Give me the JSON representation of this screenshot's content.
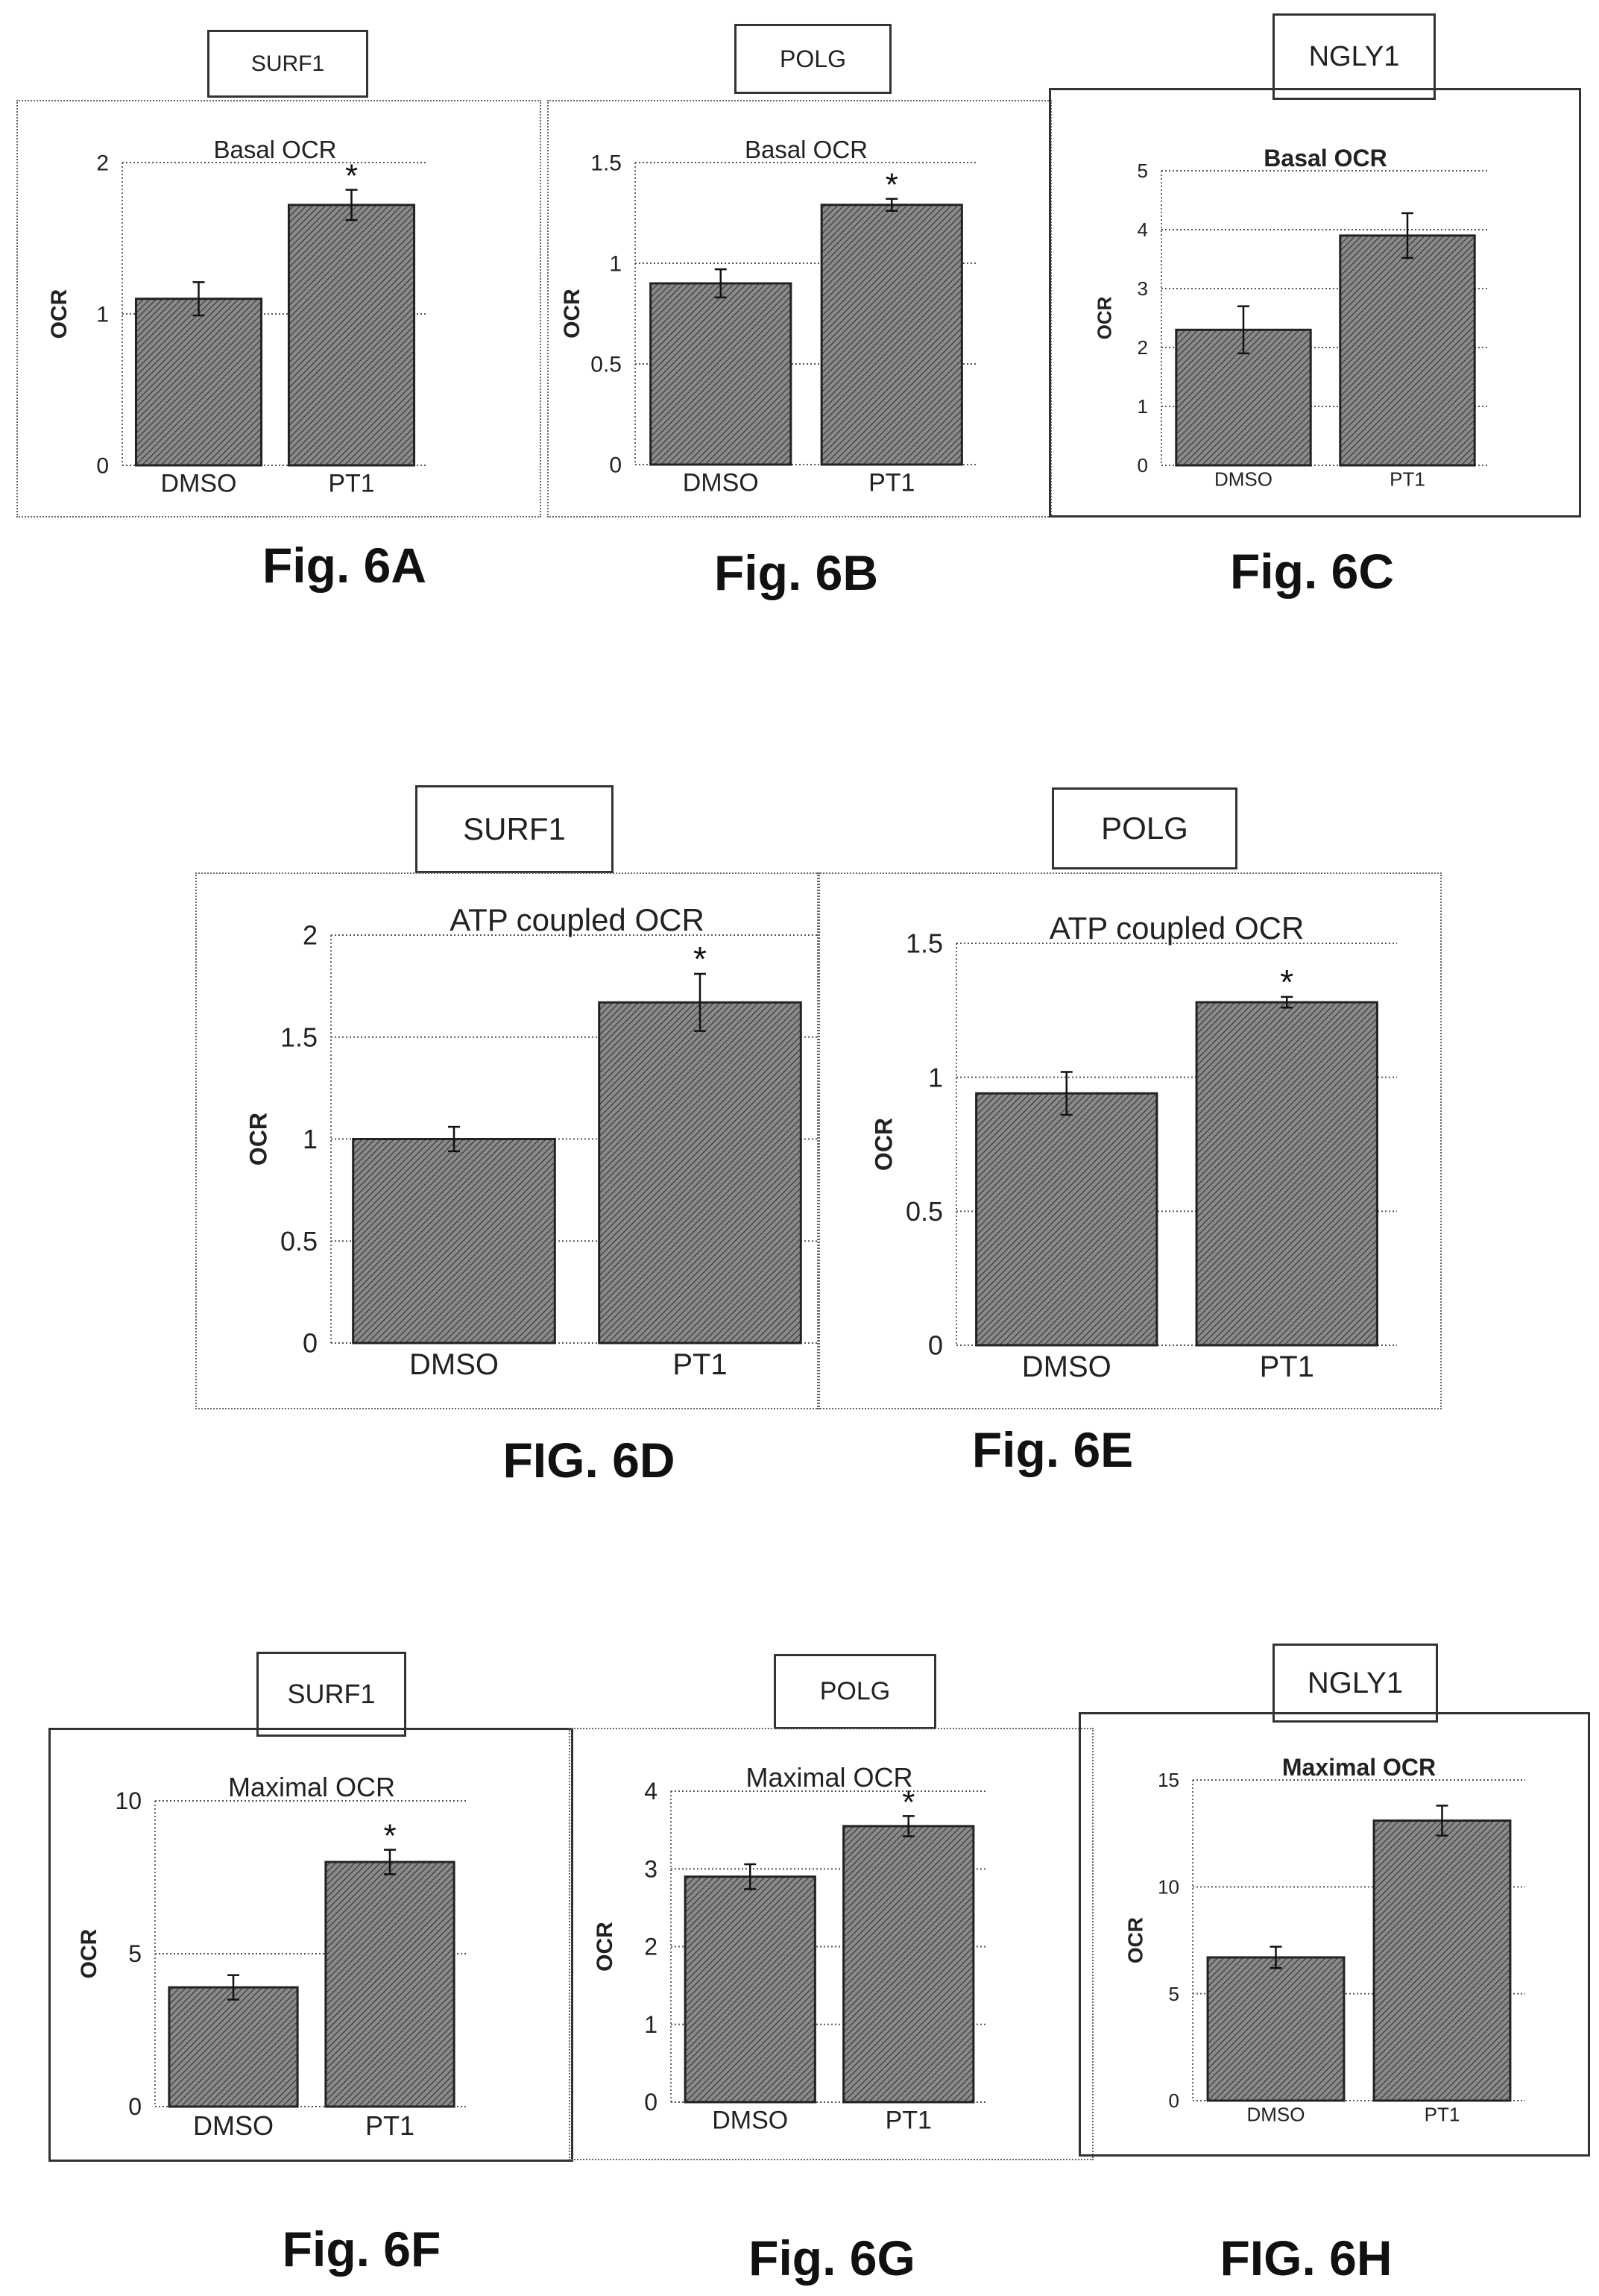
{
  "chart_data": [
    {
      "id": "6A",
      "type": "bar",
      "gene": "SURF1",
      "title": "Basal OCR",
      "ylabel": "OCR",
      "categories": [
        "DMSO",
        "PT1"
      ],
      "values": [
        1.1,
        1.72
      ],
      "errors": [
        0.11,
        0.1
      ],
      "significance": [
        "",
        "*"
      ],
      "ylim": [
        0,
        2
      ],
      "yticks": [
        0,
        1,
        2
      ],
      "ytick_labels": [
        "0",
        "1",
        "2"
      ],
      "caption": "Fig. 6A"
    },
    {
      "id": "6B",
      "type": "bar",
      "gene": "POLG",
      "title": "Basal OCR",
      "ylabel": "OCR",
      "categories": [
        "DMSO",
        "PT1"
      ],
      "values": [
        0.9,
        1.29
      ],
      "errors": [
        0.07,
        0.03
      ],
      "significance": [
        "",
        "*"
      ],
      "ylim": [
        0,
        1.5
      ],
      "yticks": [
        0,
        0.5,
        1,
        1.5
      ],
      "ytick_labels": [
        "0",
        "0.5",
        "1",
        "1.5"
      ],
      "caption": "Fig. 6B"
    },
    {
      "id": "6C",
      "type": "bar",
      "gene": "NGLY1",
      "title": "Basal OCR",
      "ylabel": "OCR",
      "categories": [
        "DMSO",
        "PT1"
      ],
      "values": [
        2.3,
        3.9
      ],
      "errors": [
        0.4,
        0.38
      ],
      "significance": [
        "",
        ""
      ],
      "ylim": [
        0,
        5
      ],
      "yticks": [
        0,
        1,
        2,
        3,
        4,
        5
      ],
      "ytick_labels": [
        "0",
        "1",
        "2",
        "3",
        "4",
        "5"
      ],
      "caption": "Fig. 6C"
    },
    {
      "id": "6D",
      "type": "bar",
      "gene": "SURF1",
      "title": "ATP coupled OCR",
      "ylabel": "OCR",
      "categories": [
        "DMSO",
        "PT1"
      ],
      "values": [
        1.0,
        1.67
      ],
      "errors": [
        0.06,
        0.14
      ],
      "significance": [
        "",
        "*"
      ],
      "ylim": [
        0,
        2
      ],
      "yticks": [
        0,
        0.5,
        1,
        1.5,
        2
      ],
      "ytick_labels": [
        "0",
        "0.5",
        "1",
        "1.5",
        "2"
      ],
      "caption": "FIG. 6D"
    },
    {
      "id": "6E",
      "type": "bar",
      "gene": "POLG",
      "title": "ATP coupled OCR",
      "ylabel": "OCR",
      "categories": [
        "DMSO",
        "PT1"
      ],
      "values": [
        0.94,
        1.28
      ],
      "errors": [
        0.08,
        0.02
      ],
      "significance": [
        "",
        "*"
      ],
      "ylim": [
        0,
        1.5
      ],
      "yticks": [
        0,
        0.5,
        1,
        1.5
      ],
      "ytick_labels": [
        "0",
        "0.5",
        "1",
        "1.5"
      ],
      "caption": "Fig. 6E"
    },
    {
      "id": "6F",
      "type": "bar",
      "gene": "SURF1",
      "title": "Maximal OCR",
      "ylabel": "OCR",
      "categories": [
        "DMSO",
        "PT1"
      ],
      "values": [
        3.9,
        8.0
      ],
      "errors": [
        0.4,
        0.4
      ],
      "significance": [
        "",
        "*"
      ],
      "ylim": [
        0,
        10
      ],
      "yticks": [
        0,
        5,
        10
      ],
      "ytick_labels": [
        "0",
        "5",
        "10"
      ],
      "caption": "Fig. 6F"
    },
    {
      "id": "6G",
      "type": "bar",
      "gene": "POLG",
      "title": "Maximal OCR",
      "ylabel": "OCR",
      "categories": [
        "DMSO",
        "PT1"
      ],
      "values": [
        2.9,
        3.55
      ],
      "errors": [
        0.16,
        0.13
      ],
      "significance": [
        "",
        "*"
      ],
      "ylim": [
        0,
        4
      ],
      "yticks": [
        0,
        1,
        2,
        3,
        4
      ],
      "ytick_labels": [
        "0",
        "1",
        "2",
        "3",
        "4"
      ],
      "caption": "Fig. 6G"
    },
    {
      "id": "6H",
      "type": "bar",
      "gene": "NGLY1",
      "title": "Maximal OCR",
      "ylabel": "OCR",
      "categories": [
        "DMSO",
        "PT1"
      ],
      "values": [
        6.7,
        13.1
      ],
      "errors": [
        0.5,
        0.7
      ],
      "significance": [
        "",
        ""
      ],
      "ylim": [
        0,
        15
      ],
      "yticks": [
        0,
        5,
        10,
        15
      ],
      "ytick_labels": [
        "0",
        "5",
        "10",
        "15"
      ],
      "caption": "FIG. 6H"
    }
  ]
}
